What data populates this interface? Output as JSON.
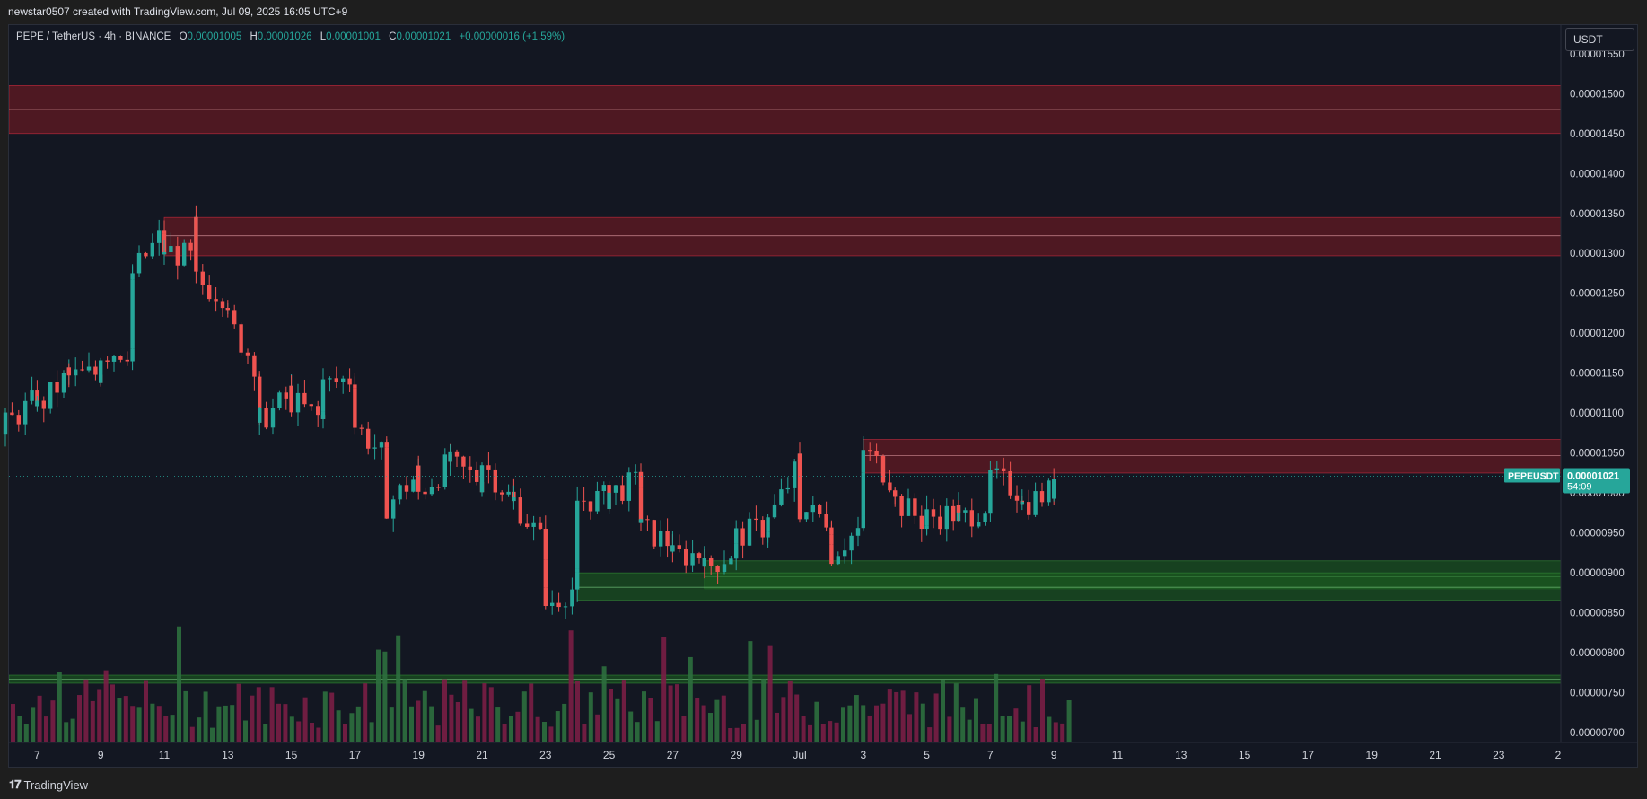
{
  "header": {
    "title": "newstar0507 created with TradingView.com, Jul 09, 2025 16:05 UTC+9"
  },
  "legend": {
    "symbol": "PEPE / TetherUS · 4h · BINANCE",
    "open_label": "O",
    "open": "0.00001005",
    "high_label": "H",
    "high": "0.00001026",
    "low_label": "L",
    "low": "0.00001001",
    "close_label": "C",
    "close": "0.00001021",
    "change": "+0.00000016 (+1.59%)"
  },
  "price_axis": {
    "unit": "USDT",
    "ticks": [
      "0.00001550",
      "0.00001500",
      "0.00001450",
      "0.00001400",
      "0.00001350",
      "0.00001300",
      "0.00001250",
      "0.00001200",
      "0.00001150",
      "0.00001100",
      "0.00001050",
      "0.00001000",
      "0.00000950",
      "0.00000900",
      "0.00000850",
      "0.00000800",
      "0.00000750",
      "0.00000700"
    ]
  },
  "time_axis": {
    "ticks": [
      "7",
      "9",
      "11",
      "13",
      "15",
      "17",
      "19",
      "21",
      "23",
      "25",
      "27",
      "29",
      "Jul",
      "3",
      "5",
      "7",
      "9",
      "11",
      "13",
      "15",
      "17",
      "19",
      "21",
      "23",
      "2"
    ]
  },
  "last_price": {
    "symbol": "PEPEUSDT",
    "value": "0.00001021",
    "countdown": "54:09"
  },
  "footer": {
    "brand": "TradingView"
  },
  "colors": {
    "up": "#26a69a",
    "down": "#ef5350",
    "supply_zone": "#801922",
    "demand_zone": "#1b5e20",
    "background": "#131722"
  },
  "chart_data": {
    "type": "candlestick",
    "symbol": "PEPE / TetherUS",
    "interval": "4h",
    "exchange": "BINANCE",
    "y_unit": "USDT",
    "ylim": [
      6.9e-06,
      1.57e-05
    ],
    "x_start": "Jun 06 2025",
    "x_end": "Aug 02 2025",
    "zones": [
      {
        "kind": "supply",
        "top": 1.51e-05,
        "bottom": 1.45e-05,
        "mid": 1.48e-05,
        "from": "Jun 06 2025"
      },
      {
        "kind": "supply",
        "top": 1.345e-05,
        "bottom": 1.297e-05,
        "mid": 1.322e-05,
        "from": "Jun 11 2025"
      },
      {
        "kind": "supply",
        "top": 1.067e-05,
        "bottom": 1.025e-05,
        "mid": 1.047e-05,
        "from": "Jul 03 2025"
      },
      {
        "kind": "demand",
        "top": 9.15e-06,
        "bottom": 8.8e-06,
        "mid": 8.95e-06,
        "from": "Jun 28 2025"
      },
      {
        "kind": "demand",
        "top": 9e-06,
        "bottom": 8.66e-06,
        "mid": 8.82e-06,
        "from": "Jun 24 2025"
      },
      {
        "kind": "demand",
        "top": 7.72e-06,
        "bottom": 7.62e-06,
        "mid": 7.67e-06,
        "from": "Jun 06 2025"
      }
    ],
    "ohlc_points": [
      {
        "t": "Jun 06 00:00",
        "c": 1.085e-05
      },
      {
        "t": "Jun 07 00:00",
        "c": 1.12e-05
      },
      {
        "t": "Jun 07 12:00",
        "c": 1.105e-05
      },
      {
        "t": "Jun 08 00:00",
        "c": 1.15e-05
      },
      {
        "t": "Jun 08 12:00",
        "c": 1.145e-05
      },
      {
        "t": "Jun 09 00:00",
        "c": 1.15e-05
      },
      {
        "t": "Jun 09 12:00",
        "c": 1.175e-05
      },
      {
        "t": "Jun 10 00:00",
        "c": 1.18e-05
      },
      {
        "t": "Jun 10 08:00",
        "c": 1.255e-05
      },
      {
        "t": "Jun 10 20:00",
        "c": 1.275e-05
      },
      {
        "t": "Jun 11 00:00",
        "c": 1.33e-05
      },
      {
        "t": "Jun 11 08:00",
        "c": 1.29e-05
      },
      {
        "t": "Jun 11 20:00",
        "c": 1.305e-05
      },
      {
        "t": "Jun 12 04:00",
        "c": 1.29e-05
      },
      {
        "t": "Jun 12 08:00",
        "c": 1.335e-05
      },
      {
        "t": "Jun 12 16:00",
        "c": 1.265e-05
      },
      {
        "t": "Jun 13 00:00",
        "c": 1.245e-05
      },
      {
        "t": "Jun 13 12:00",
        "c": 1.215e-05
      },
      {
        "t": "Jun 14 00:00",
        "c": 1.15e-05
      },
      {
        "t": "Jun 14 08:00",
        "c": 1.075e-05
      },
      {
        "t": "Jun 14 20:00",
        "c": 1.09e-05
      },
      {
        "t": "Jun 15 04:00",
        "c": 1.125e-05
      },
      {
        "t": "Jun 15 16:00",
        "c": 1.115e-05
      },
      {
        "t": "Jun 16 00:00",
        "c": 1.09e-05
      },
      {
        "t": "Jun 16 12:00",
        "c": 1.115e-05
      },
      {
        "t": "Jun 16 20:00",
        "c": 1.135e-05
      },
      {
        "t": "Jun 17 04:00",
        "c": 1.145e-05
      },
      {
        "t": "Jun 17 12:00",
        "c": 1.085e-05
      },
      {
        "t": "Jun 18 00:00",
        "c": 1.04e-05
      },
      {
        "t": "Jun 18 12:00",
        "c": 9.85e-06
      },
      {
        "t": "Jun 19 00:00",
        "c": 1.025e-05
      },
      {
        "t": "Jun 19 12:00",
        "c": 1e-05
      },
      {
        "t": "Jun 20 00:00",
        "c": 1.04e-05
      },
      {
        "t": "Jun 20 12:00",
        "c": 1.035e-05
      },
      {
        "t": "Jun 21 00:00",
        "c": 1.015e-05
      },
      {
        "t": "Jun 21 12:00",
        "c": 1.04e-05
      },
      {
        "t": "Jun 22 00:00",
        "c": 9.85e-06
      },
      {
        "t": "Jun 22 12:00",
        "c": 9.9e-06
      },
      {
        "t": "Jun 23 00:00",
        "c": 9.3e-06
      },
      {
        "t": "Jun 23 08:00",
        "c": 8.7e-06
      },
      {
        "t": "Jun 23 16:00",
        "c": 8.6e-06
      },
      {
        "t": "Jun 24 00:00",
        "c": 8.85e-06
      },
      {
        "t": "Jun 24 08:00",
        "c": 8.95e-06
      },
      {
        "t": "Jun 24 16:00",
        "c": 9.9e-06
      },
      {
        "t": "Jun 25 00:00",
        "c": 9.95e-06
      },
      {
        "t": "Jun 25 12:00",
        "c": 1e-05
      },
      {
        "t": "Jun 26 00:00",
        "c": 1.015e-05
      },
      {
        "t": "Jun 26 08:00",
        "c": 9.65e-06
      },
      {
        "t": "Jun 26 20:00",
        "c": 9.55e-06
      },
      {
        "t": "Jun 27 08:00",
        "c": 9.35e-06
      },
      {
        "t": "Jun 27 20:00",
        "c": 9.2e-06
      },
      {
        "t": "Jun 28 04:00",
        "c": 9.25e-06
      },
      {
        "t": "Jun 28 16:00",
        "c": 9.05e-06
      },
      {
        "t": "Jun 29 04:00",
        "c": 9.3e-06
      },
      {
        "t": "Jun 29 16:00",
        "c": 9.45e-06
      },
      {
        "t": "Jun 30 04:00",
        "c": 9.6e-06
      },
      {
        "t": "Jun 30 16:00",
        "c": 9.65e-06
      },
      {
        "t": "Jul 01 00:00",
        "c": 1.04e-05
      },
      {
        "t": "Jul 01 08:00",
        "c": 9.9e-06
      },
      {
        "t": "Jul 01 16:00",
        "c": 9.8e-06
      },
      {
        "t": "Jul 02 00:00",
        "c": 9.65e-06
      },
      {
        "t": "Jul 02 12:00",
        "c": 9.35e-06
      },
      {
        "t": "Jul 02 20:00",
        "c": 9.25e-06
      },
      {
        "t": "Jul 03 04:00",
        "c": 9.6e-06
      },
      {
        "t": "Jul 03 12:00",
        "c": 1.02e-05
      },
      {
        "t": "Jul 03 20:00",
        "c": 1.055e-05
      },
      {
        "t": "Jul 04 04:00",
        "c": 1.01e-05
      },
      {
        "t": "Jul 04 12:00",
        "c": 9.9e-06
      },
      {
        "t": "Jul 05 00:00",
        "c": 9.6e-06
      },
      {
        "t": "Jul 05 12:00",
        "c": 9.7e-06
      },
      {
        "t": "Jul 06 00:00",
        "c": 9.75e-06
      },
      {
        "t": "Jul 06 12:00",
        "c": 9.65e-06
      },
      {
        "t": "Jul 07 00:00",
        "c": 9.9e-06
      },
      {
        "t": "Jul 07 12:00",
        "c": 1.02e-05
      },
      {
        "t": "Jul 08 00:00",
        "c": 1e-05
      },
      {
        "t": "Jul 08 12:00",
        "c": 9.85e-06
      },
      {
        "t": "Jul 09 00:00",
        "c": 1.005e-05
      },
      {
        "t": "Jul 09 08:00",
        "c": 1.021e-05
      }
    ]
  }
}
